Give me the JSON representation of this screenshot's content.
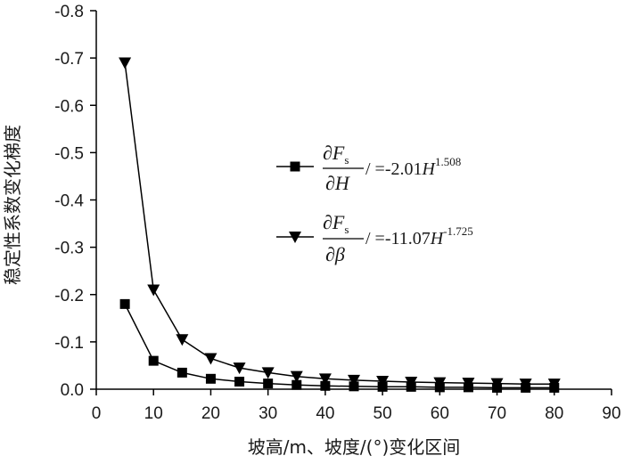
{
  "chart_data": {
    "type": "line",
    "xlabel": "坡高/m、坡度/(°)变化区间",
    "ylabel": "稳定性系数变化梯度",
    "xlim": [
      0,
      90
    ],
    "ylim": [
      0.0,
      -0.8
    ],
    "y_axis_inverted": true,
    "xticks": [
      "0",
      "10",
      "20",
      "30",
      "40",
      "50",
      "60",
      "70",
      "80",
      "90"
    ],
    "yticks": [
      "0.0",
      "-0.1",
      "-0.2",
      "-0.3",
      "-0.4",
      "-0.5",
      "-0.6",
      "-0.7",
      "-0.8"
    ],
    "grid": false,
    "legend_position": "center-right",
    "series": [
      {
        "marker": "square",
        "legend": {
          "numerator": "∂F",
          "numerator_sub": "s",
          "denominator": "∂H",
          "equation": "/ =-2.01",
          "variable": "H",
          "exponent": "1.508"
        },
        "x": [
          5,
          10,
          15,
          20,
          25,
          30,
          35,
          40,
          45,
          50,
          55,
          60,
          65,
          70,
          75,
          80
        ],
        "y": [
          -0.18,
          -0.06,
          -0.035,
          -0.022,
          -0.016,
          -0.012,
          -0.009,
          -0.007,
          -0.006,
          -0.005,
          -0.005,
          -0.004,
          -0.004,
          -0.003,
          -0.003,
          -0.003
        ]
      },
      {
        "marker": "triangle-down",
        "legend": {
          "numerator": "∂F",
          "numerator_sub": "s",
          "denominator": "∂β",
          "equation": "/ =-11.07",
          "variable": "H",
          "exponent": "-1.725"
        },
        "x": [
          5,
          10,
          15,
          20,
          25,
          30,
          35,
          40,
          45,
          50,
          55,
          60,
          65,
          70,
          75,
          80
        ],
        "y": [
          -0.69,
          -0.21,
          -0.105,
          -0.065,
          -0.045,
          -0.035,
          -0.027,
          -0.022,
          -0.019,
          -0.017,
          -0.015,
          -0.014,
          -0.013,
          -0.012,
          -0.011,
          -0.011
        ]
      }
    ]
  }
}
